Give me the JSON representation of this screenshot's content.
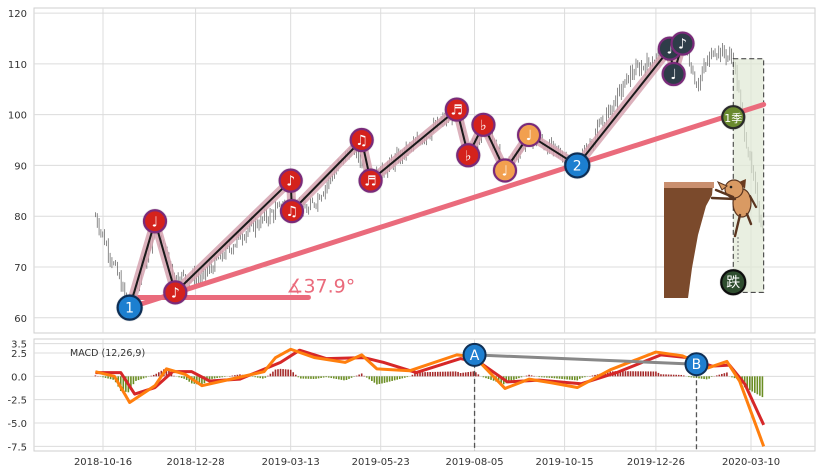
{
  "chart_data": [
    {
      "type": "candlestick",
      "panel": "price",
      "x_ticks": [
        "2018-10-16",
        "2018-12-28",
        "2019-03-13",
        "2019-05-23",
        "2019-08-05",
        "2019-10-15",
        "2019-12-26",
        "2020-03-10"
      ],
      "ylim": [
        57,
        121
      ],
      "y_ticks": [
        "60",
        "70",
        "80",
        "90",
        "100",
        "110",
        "120"
      ],
      "grid": true,
      "price_path": [
        {
          "date": "2018-10-10",
          "close": 80
        },
        {
          "date": "2018-11-06",
          "close": 62
        },
        {
          "date": "2018-11-26",
          "close": 78
        },
        {
          "date": "2018-12-12",
          "close": 68
        },
        {
          "date": "2019-01-02",
          "close": 68
        },
        {
          "date": "2019-02-05",
          "close": 77
        },
        {
          "date": "2019-03-13",
          "close": 83
        },
        {
          "date": "2019-03-27",
          "close": 81
        },
        {
          "date": "2019-05-01",
          "close": 94
        },
        {
          "date": "2019-05-15",
          "close": 87
        },
        {
          "date": "2019-07-22",
          "close": 101
        },
        {
          "date": "2019-07-31",
          "close": 92
        },
        {
          "date": "2019-08-12",
          "close": 98
        },
        {
          "date": "2019-08-29",
          "close": 89
        },
        {
          "date": "2019-09-17",
          "close": 96
        },
        {
          "date": "2019-10-25",
          "close": 90
        },
        {
          "date": "2019-12-06",
          "close": 108
        },
        {
          "date": "2020-01-06",
          "close": 113
        },
        {
          "date": "2020-01-09",
          "close": 107
        },
        {
          "date": "2020-01-16",
          "close": 115
        },
        {
          "date": "2020-01-27",
          "close": 106
        },
        {
          "date": "2020-02-10",
          "close": 113
        },
        {
          "date": "2020-02-25",
          "close": 111
        },
        {
          "date": "2020-03-06",
          "close": 95
        },
        {
          "date": "2020-03-20",
          "close": 76
        }
      ],
      "zigzag": [
        {
          "label": "1",
          "date": "2018-11-06",
          "price": 62
        },
        {
          "label": "♩",
          "date": "2018-11-26",
          "price": 79
        },
        {
          "label": "♪",
          "date": "2018-12-12",
          "price": 65
        },
        {
          "label": "♪",
          "date": "2019-03-13",
          "price": 87
        },
        {
          "label": "♫",
          "date": "2019-03-14",
          "price": 81
        },
        {
          "label": "♫",
          "date": "2019-05-08",
          "price": 95
        },
        {
          "label": "♬",
          "date": "2019-05-15",
          "price": 87
        },
        {
          "label": "♬",
          "date": "2019-07-22",
          "price": 101
        },
        {
          "label": "♭",
          "date": "2019-07-31",
          "price": 92
        },
        {
          "label": "♭",
          "date": "2019-08-12",
          "price": 98
        },
        {
          "label": "♩",
          "date": "2019-08-29",
          "price": 89
        },
        {
          "label": "♩",
          "date": "2019-09-17",
          "price": 96
        },
        {
          "label": "2",
          "date": "2019-10-25",
          "price": 90
        },
        {
          "label": "♩",
          "date": "2020-01-06",
          "price": 113
        },
        {
          "label": "♩",
          "date": "2020-01-09",
          "price": 108
        },
        {
          "label": "♪",
          "date": "2020-01-16",
          "price": 114
        }
      ],
      "markers_extra": [
        {
          "label": "1季",
          "date": "2020-02-25",
          "price": 99.5
        },
        {
          "label": "跌",
          "date": "2020-02-25",
          "price": 67
        }
      ],
      "trendline": {
        "from": {
          "date": "2018-11-06",
          "price": 62
        },
        "to": {
          "date": "2020-03-20",
          "price": 102
        },
        "color": "#ea6b7c"
      },
      "angle_label": "∡37.9°",
      "angle_ray": {
        "from_date": "2018-11-06",
        "to_date": "2019-03-27",
        "price": 64
      },
      "highlight_box": {
        "from_date": "2020-02-25",
        "to_date": "2020-03-20",
        "ylim": [
          65,
          111
        ]
      }
    },
    {
      "type": "line",
      "panel": "macd",
      "label": "MACD (12,26,9)",
      "ylim": [
        -8,
        4
      ],
      "y_ticks": [
        "3.5",
        "2.5",
        "0.0",
        "-2.5",
        "-5.0",
        "-7.5"
      ],
      "series": [
        {
          "name": "MACD",
          "color": "#ff7f0e",
          "points": [
            [
              "2018-10-10",
              0.5
            ],
            [
              "2018-10-25",
              0.0
            ],
            [
              "2018-11-06",
              -2.8
            ],
            [
              "2018-11-26",
              -1.0
            ],
            [
              "2018-12-05",
              0.8
            ],
            [
              "2018-12-20",
              0.2
            ],
            [
              "2019-01-02",
              -1.0
            ],
            [
              "2019-01-25",
              -0.3
            ],
            [
              "2019-02-20",
              0.5
            ],
            [
              "2019-03-01",
              2.0
            ],
            [
              "2019-03-13",
              2.9
            ],
            [
              "2019-04-01",
              2.0
            ],
            [
              "2019-04-25",
              1.5
            ],
            [
              "2019-05-08",
              2.3
            ],
            [
              "2019-05-20",
              0.8
            ],
            [
              "2019-06-15",
              0.6
            ],
            [
              "2019-07-22",
              2.3
            ],
            [
              "2019-08-05",
              2.1
            ],
            [
              "2019-08-29",
              -1.3
            ],
            [
              "2019-09-17",
              -0.3
            ],
            [
              "2019-10-05",
              -0.7
            ],
            [
              "2019-10-25",
              -1.2
            ],
            [
              "2019-11-20",
              0.7
            ],
            [
              "2019-12-26",
              2.6
            ],
            [
              "2020-01-16",
              2.2
            ],
            [
              "2020-02-05",
              0.9
            ],
            [
              "2020-02-20",
              1.6
            ],
            [
              "2020-03-01",
              -0.5
            ],
            [
              "2020-03-20",
              -7.5
            ]
          ]
        },
        {
          "name": "Signal",
          "color": "#d62728",
          "points": [
            [
              "2018-10-10",
              0.4
            ],
            [
              "2018-10-30",
              0.4
            ],
            [
              "2018-11-10",
              -1.9
            ],
            [
              "2018-11-26",
              -1.2
            ],
            [
              "2018-12-10",
              0.5
            ],
            [
              "2018-12-25",
              0.5
            ],
            [
              "2019-01-08",
              -0.5
            ],
            [
              "2019-02-01",
              -0.3
            ],
            [
              "2019-03-05",
              1.5
            ],
            [
              "2019-03-20",
              2.8
            ],
            [
              "2019-04-10",
              1.9
            ],
            [
              "2019-05-10",
              2.0
            ],
            [
              "2019-05-25",
              1.5
            ],
            [
              "2019-06-20",
              0.4
            ],
            [
              "2019-07-25",
              1.9
            ],
            [
              "2019-08-10",
              1.4
            ],
            [
              "2019-08-31",
              -0.6
            ],
            [
              "2019-09-25",
              -0.4
            ],
            [
              "2019-10-28",
              -0.8
            ],
            [
              "2019-11-25",
              0.4
            ],
            [
              "2019-12-30",
              2.3
            ],
            [
              "2020-01-20",
              2.0
            ],
            [
              "2020-02-08",
              1.1
            ],
            [
              "2020-02-22",
              1.2
            ],
            [
              "2020-03-05",
              -0.8
            ],
            [
              "2020-03-20",
              -5.2
            ]
          ]
        }
      ],
      "histogram_colors": {
        "positive": "#a52a2a",
        "negative": "#6b8e23"
      },
      "divergence": [
        {
          "label": "A",
          "date": "2019-08-05",
          "value": 2.3
        },
        {
          "label": "B",
          "date": "2020-01-27",
          "value": 1.3
        }
      ]
    }
  ]
}
